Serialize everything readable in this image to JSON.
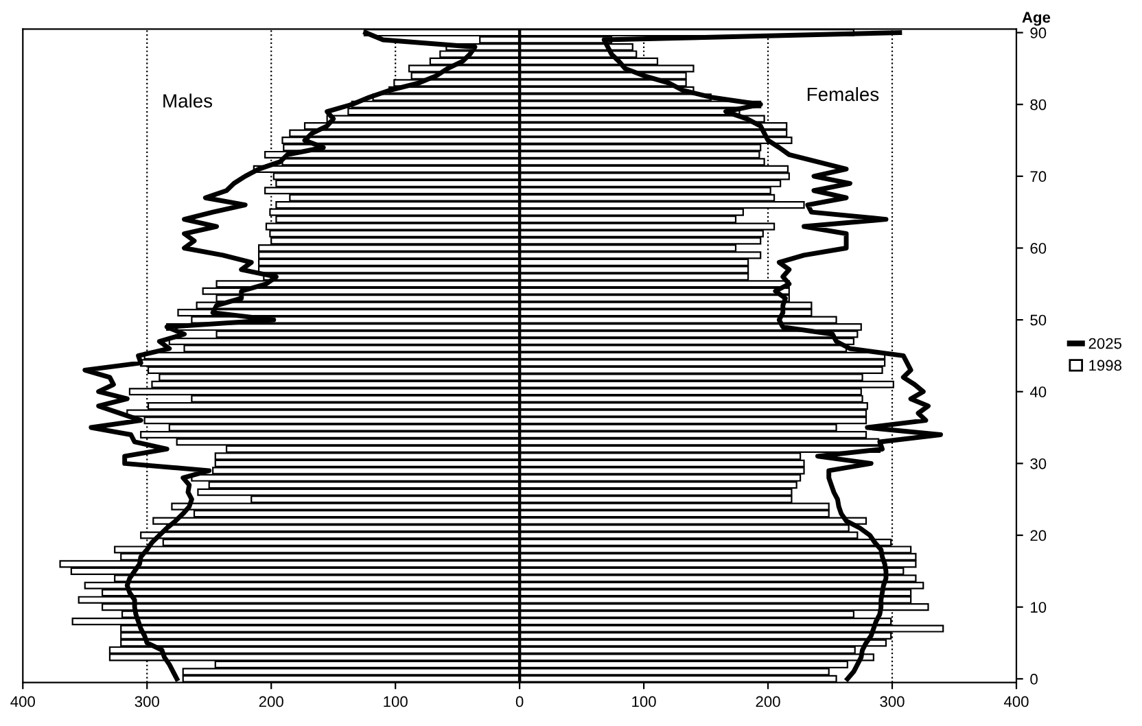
{
  "chart_data": {
    "type": "bar",
    "orientation": "horizontal",
    "ylabel": "Age",
    "categories": [
      "90",
      null,
      null,
      null,
      null,
      null,
      null,
      null,
      null,
      null,
      "80",
      null,
      null,
      null,
      null,
      null,
      null,
      null,
      null,
      null,
      "70",
      null,
      null,
      null,
      null,
      null,
      null,
      null,
      null,
      null,
      "60",
      null,
      null,
      null,
      null,
      null,
      null,
      null,
      null,
      null,
      "50",
      null,
      null,
      null,
      null,
      null,
      null,
      null,
      null,
      null,
      "40",
      null,
      null,
      null,
      null,
      null,
      null,
      null,
      null,
      null,
      "30",
      null,
      null,
      null,
      null,
      null,
      null,
      null,
      null,
      null,
      "20",
      null,
      null,
      null,
      null,
      null,
      null,
      null,
      null,
      null,
      "10",
      null,
      null,
      null,
      null,
      null,
      null,
      null,
      null,
      null,
      "0"
    ],
    "series": [
      {
        "name": "1998",
        "color": "#ffffff",
        "values": [
          -125,
          -32,
          -59,
          -64,
          -72,
          -89,
          -87,
          -101,
          -105,
          -118,
          -135,
          -138,
          -155,
          -173,
          -185,
          -191,
          -190,
          -205,
          -191,
          -214,
          -198,
          -196,
          -205,
          -185,
          -196,
          -201,
          -196,
          -204,
          -201,
          -200,
          -210,
          -210,
          -210,
          -210,
          -206,
          -244,
          -255,
          -244,
          -260,
          -275,
          -264,
          -284,
          -244,
          -282,
          -270,
          -302,
          -305,
          -299,
          -290,
          -296,
          -314,
          -264,
          -299,
          -316,
          -302,
          -282,
          -305,
          -276,
          -236,
          -245,
          -245,
          -247,
          -264,
          -250,
          -259,
          -216,
          -280,
          -262,
          -295,
          -284,
          -305,
          -287,
          -326,
          -321,
          -370,
          -361,
          -326,
          -350,
          -336,
          -355,
          -336,
          -320,
          -360,
          -321,
          -321,
          -321,
          -330,
          -330,
          -245,
          -271,
          -271
        ]
      },
      {
        "color": "#ffffff",
        "values": [
          269,
          74,
          91,
          94,
          111,
          140,
          134,
          134,
          140,
          154,
          194,
          177,
          197,
          215,
          215,
          219,
          194,
          193,
          197,
          216,
          217,
          210,
          202,
          205,
          229,
          180,
          174,
          205,
          196,
          194,
          174,
          194,
          184,
          184,
          184,
          217,
          217,
          217,
          235,
          235,
          255,
          275,
          272,
          269,
          263,
          294,
          294,
          292,
          276,
          301,
          275,
          276,
          280,
          279,
          279,
          255,
          279,
          289,
          290,
          226,
          229,
          229,
          226,
          223,
          219,
          219,
          249,
          249,
          279,
          265,
          272,
          299,
          315,
          319,
          319,
          309,
          319,
          325,
          315,
          315,
          329,
          269,
          299,
          341,
          299,
          295,
          270,
          285,
          264,
          249,
          255
        ]
      },
      {
        "name": "2025",
        "type": "line",
        "color": "#000000",
        "values": [
          -124,
          -110,
          -36,
          -40,
          -46,
          -58,
          -67,
          -81,
          -104,
          -121,
          -135,
          -155,
          -150,
          -155,
          -167,
          -173,
          -158,
          -187,
          -193,
          -210,
          -221,
          -230,
          -236,
          -253,
          -221,
          -247,
          -270,
          -244,
          -270,
          -262,
          -270,
          -239,
          -216,
          -224,
          -196,
          -204,
          -224,
          -224,
          -244,
          -247,
          -198,
          -284,
          -270,
          -290,
          -282,
          -307,
          -305,
          -350,
          -330,
          -327,
          -339,
          -316,
          -339,
          -322,
          -305,
          -345,
          -313,
          -310,
          -284,
          -318,
          -318,
          -250,
          -271,
          -266,
          -267,
          -264,
          -266,
          -271,
          -277,
          -284,
          -290,
          -296,
          -300,
          -305,
          -306,
          -310,
          -314,
          -316,
          -314,
          -310,
          -310,
          -309,
          -307,
          -305,
          -302,
          -300,
          -288,
          -286,
          -282,
          -279,
          -276
        ]
      },
      {
        "type": "line",
        "color": "#000000",
        "values": [
          306,
          68,
          71,
          74,
          80,
          85,
          100,
          120,
          131,
          154,
          194,
          166,
          183,
          194,
          197,
          200,
          209,
          217,
          240,
          263,
          237,
          266,
          237,
          263,
          232,
          235,
          295,
          229,
          263,
          263,
          263,
          229,
          209,
          217,
          212,
          217,
          206,
          214,
          212,
          212,
          209,
          212,
          252,
          255,
          266,
          309,
          312,
          315,
          309,
          318,
          325,
          315,
          329,
          321,
          327,
          280,
          339,
          290,
          292,
          240,
          283,
          249,
          249,
          251,
          253,
          256,
          257,
          259,
          263,
          274,
          282,
          286,
          291,
          292,
          294,
          295,
          295,
          293,
          292,
          291,
          291,
          290,
          287,
          285,
          283,
          279,
          276,
          275,
          272,
          269,
          264
        ]
      }
    ],
    "xlim": [
      -400,
      400
    ],
    "xticks": [
      {
        "value": -400,
        "label": "400"
      },
      {
        "value": -300,
        "label": "300"
      },
      {
        "value": -200,
        "label": "200"
      },
      {
        "value": -100,
        "label": "100"
      },
      0,
      100,
      200,
      300,
      400
    ],
    "grid": "x",
    "stacked": true,
    "ref_lines": [
      {
        "axis": "x",
        "value": 0,
        "line_style": "solid"
      }
    ],
    "annotations": [
      "Males",
      "Females"
    ],
    "legend": "right"
  }
}
